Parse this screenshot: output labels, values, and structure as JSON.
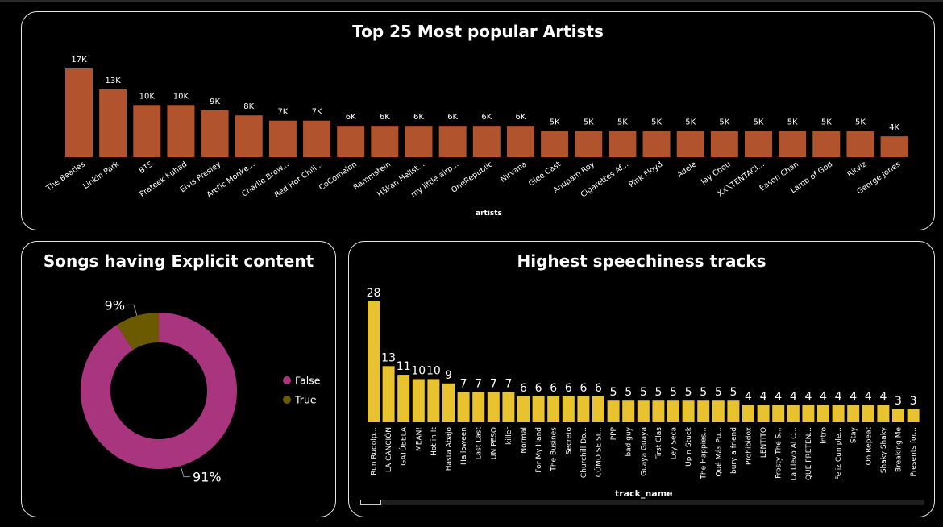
{
  "artists_chart": {
    "type": "bar",
    "title": "Top 25 Most popular Artists",
    "xlabel": "artists",
    "ylabel": "",
    "color": "#b1532d",
    "categories": [
      "The Beatles",
      "Linkin Park",
      "BTS",
      "Prateek Kuhad",
      "Elvis Presley",
      "Arctic Monke...",
      "Charlie Brow...",
      "Red Hot Chili...",
      "CoComelon",
      "Rammstein",
      "Håkan Hellst...",
      "my little airp...",
      "OneRepublic",
      "Nirvana",
      "Glee Cast",
      "Anupam Roy",
      "Cigarettes Af...",
      "Pink Floyd",
      "Adele",
      "Jay Chou",
      "XXXTENTACI...",
      "Eason Chan",
      "Lamb of God",
      "Ritviz",
      "George Jones"
    ],
    "values": [
      17,
      13,
      10,
      10,
      9,
      8,
      7,
      7,
      6,
      6,
      6,
      6,
      6,
      6,
      5,
      5,
      5,
      5,
      5,
      5,
      5,
      5,
      5,
      5,
      4
    ],
    "labels": [
      "17K",
      "13K",
      "10K",
      "10K",
      "9K",
      "8K",
      "7K",
      "7K",
      "6K",
      "6K",
      "6K",
      "6K",
      "6K",
      "6K",
      "5K",
      "5K",
      "5K",
      "5K",
      "5K",
      "5K",
      "5K",
      "5K",
      "5K",
      "5K",
      "4K"
    ]
  },
  "explicit_chart": {
    "type": "pie",
    "title": "Songs having Explicit content",
    "slices": [
      {
        "name": "False",
        "value": 91,
        "label": "91%",
        "color": "#a8357e"
      },
      {
        "name": "True",
        "value": 9,
        "label": "9%",
        "color": "#6b5a00"
      }
    ]
  },
  "speechiness_chart": {
    "type": "bar",
    "title": "Highest speechiness tracks",
    "xlabel": "track_name",
    "ylabel": "",
    "color": "#e8c22f",
    "categories": [
      "Run Rudolp...",
      "LA CANCIÓN",
      "GATÚBELA",
      "MEAN!",
      "Hot in It",
      "Hasta Abajo",
      "Halloween",
      "Last Last",
      "UN PESO",
      "killer",
      "Normal",
      "For My Hand",
      "The Busines",
      "Secreto",
      "Churchill Do...",
      "CÓMO SE SI...",
      "PPP",
      "bad guy",
      "Guaya Guaya",
      "First Clas",
      "Ley Seca",
      "Up n Stuck",
      "The Happies...",
      "Qué Más Pu...",
      "bury a friend",
      "Prohibidox",
      "LENTITO",
      "Frosty The S...",
      "La Llevo Al C...",
      "QUE PRETEN...",
      "Intro",
      "Feliz Cumple...",
      "Stay",
      "On Repeat",
      "Shaky Shaky",
      "Breaking Me",
      "Presents for..."
    ],
    "values": [
      28,
      13,
      11,
      10,
      10,
      9,
      7,
      7,
      7,
      7,
      6,
      6,
      6,
      6,
      6,
      6,
      5,
      5,
      5,
      5,
      5,
      5,
      5,
      5,
      5,
      4,
      4,
      4,
      4,
      4,
      4,
      4,
      4,
      4,
      4,
      3,
      3
    ]
  }
}
